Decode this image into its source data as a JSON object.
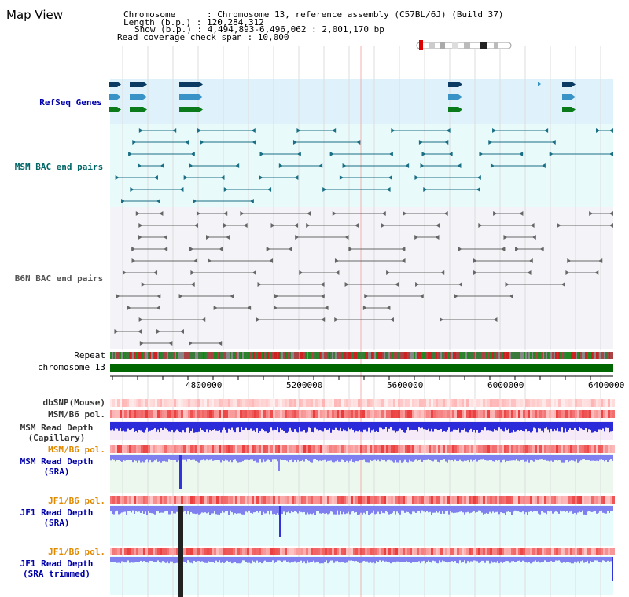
{
  "title": "Map View",
  "info": {
    "chromosome_label": "Chromosome      : Chromosome 13, reference assembly (C57BL/6J) (Build 37)",
    "length_label": "Length (b.p.) : 120,284,312",
    "show_label": "Show (b.p.) : 4,494,893-6,496,062 : 2,001,170 bp",
    "span_label": "Read coverage check span : 10,000"
  },
  "tracks": {
    "refseq": "RefSeq Genes",
    "msm_bac": "MSM BAC end pairs",
    "b6n_bac": "B6N BAC end pairs",
    "repeat": "Repeat",
    "chromosome": "chromosome 13",
    "dbsnp": "dbSNP(Mouse)",
    "msm_b6_pol_1": "MSM/B6 pol.",
    "msm_depth_cap": "MSM Read Depth\n(Capillary)",
    "msm_b6_pol_2": "MSM/B6 pol.",
    "msm_depth_sra": "MSM Read Depth\n(SRA)",
    "jf1_b6_pol_1": "JF1/B6 pol.",
    "jf1_depth_sra": "JF1 Read Depth\n(SRA)",
    "jf1_b6_pol_2": "JF1/B6 pol.",
    "jf1_depth_trim": "JF1 Read Depth\n(SRA trimmed)"
  },
  "ticks": [
    "4800000",
    "5200000",
    "5600000",
    "6000000",
    "6400000"
  ],
  "colors": {
    "refseq_bg": "#dff2fb",
    "msm_bac_bg": "#e8fafa",
    "b6n_bac_bg": "#f4f4f8",
    "chromosome_bar": "#006600",
    "label_blue": "#0000aa",
    "label_teal": "#006666",
    "label_orange": "#e08a00",
    "depth_blue": "#2b2bd9",
    "depth_light": "#7f7ff0"
  }
}
